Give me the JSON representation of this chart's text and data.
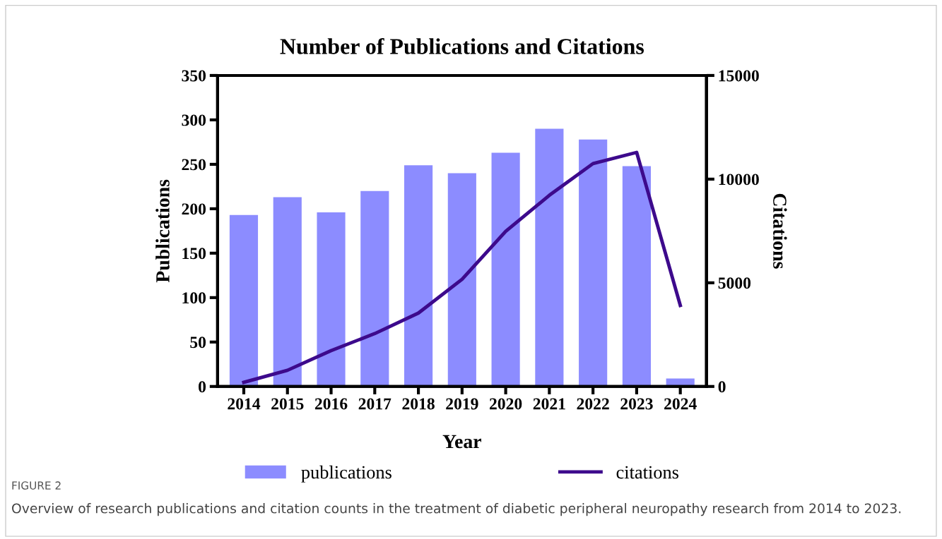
{
  "chart_data": {
    "type": "bar",
    "title": "Number of Publications and Citations",
    "xlabel": "Year",
    "ylabel": "Publications",
    "y2label": "Citations",
    "categories": [
      "2014",
      "2015",
      "2016",
      "2017",
      "2018",
      "2019",
      "2020",
      "2021",
      "2022",
      "2023",
      "2024"
    ],
    "series": [
      {
        "name": "publications",
        "color": "#8c8cff",
        "values": [
          193,
          213,
          196,
          220,
          249,
          240,
          263,
          290,
          278,
          248,
          9
        ]
      },
      {
        "name": "citations",
        "type": "line",
        "axis": "y2",
        "color": "#3d0a8c",
        "values": [
          200,
          780,
          1730,
          2550,
          3540,
          5170,
          7480,
          9220,
          10750,
          11290,
          3910
        ]
      }
    ],
    "ylim": [
      0,
      350
    ],
    "yticks": [
      0,
      50,
      100,
      150,
      200,
      250,
      300,
      350
    ],
    "y2lim": [
      0,
      15000
    ],
    "y2ticks": [
      0,
      5000,
      10000,
      15000
    ],
    "legend": "bottom",
    "grid": false,
    "marker": "none",
    "line_style": "solid",
    "annotations": [
      "FIGURE 2",
      "Overview of research publications and citation counts in the treatment of diabetic peripheral neuropathy research from 2014 to 2023."
    ]
  }
}
